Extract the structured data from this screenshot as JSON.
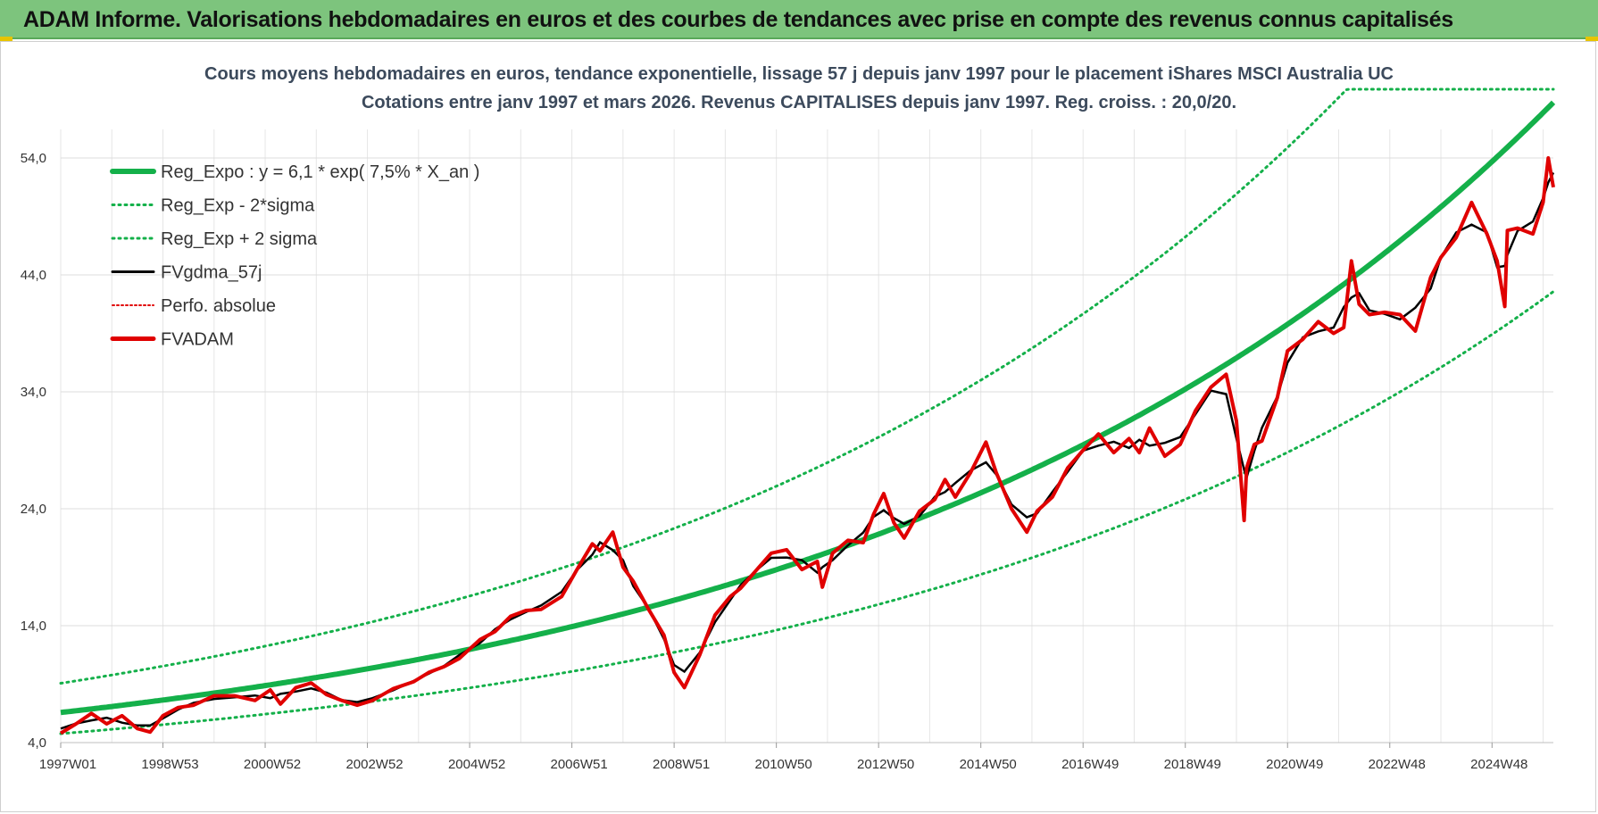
{
  "banner": {
    "title": "ADAM Informe. Valorisations hebdomadaires en euros et des courbes de tendances avec prise en compte des revenus connus capitalisés"
  },
  "chart_data": {
    "type": "line",
    "title_line1": "Cours moyens hebdomadaires en euros, tendance exponentielle, lissage 57 j depuis janv 1997 pour le placement iShares MSCI Australia UC",
    "title_line2": "Cotations entre janv 1997 et mars 2026. Revenus CAPITALISES depuis janv 1997. Reg. croiss. : 20,0/20.",
    "xlabel": "",
    "ylabel": "",
    "xlim": [
      1997.0,
      2026.2
    ],
    "ylim": [
      4,
      59
    ],
    "y_ticks": [
      4.0,
      14.0,
      24.0,
      34.0,
      44.0,
      54.0
    ],
    "y_tick_labels": [
      "4,0",
      "14,0",
      "24,0",
      "34,0",
      "44,0",
      "54,0"
    ],
    "x_ticks": [
      1997.0,
      1999.0,
      2001.0,
      2003.0,
      2005.0,
      2007.0,
      2009.0,
      2011.0,
      2013.0,
      2015.0,
      2017.0,
      2019.0,
      2021.0,
      2023.0,
      2025.0
    ],
    "x_tick_labels": [
      "1997W01",
      "1998W53",
      "2000W52",
      "2002W52",
      "2004W52",
      "2006W51",
      "2008W51",
      "2010W50",
      "2012W50",
      "2014W50",
      "2016W49",
      "2018W49",
      "2020W49",
      "2022W48",
      "2024W48"
    ],
    "grid": true,
    "legend_position": "top-left",
    "regression": {
      "a": 6.1,
      "rate": 0.075,
      "sigma_factor": 1.38
    },
    "series": [
      {
        "name": "Reg_Expo : y = 6,1 * exp( 7,5% *  X_an )",
        "style": "solid-thick",
        "color": "#14b04a"
      },
      {
        "name": "Reg_Exp - 2*sigma",
        "style": "dotted",
        "color": "#14b04a"
      },
      {
        "name": "Reg_Exp + 2 sigma",
        "style": "dotted",
        "color": "#14b04a"
      },
      {
        "name": "FVgdma_57j",
        "style": "solid",
        "color": "#000000"
      },
      {
        "name": "Perfo. absolue",
        "style": "dotted",
        "color": "#e00000"
      },
      {
        "name": "FVADAM",
        "style": "solid-thick",
        "color": "#e00000",
        "x": [
          1997.0,
          1997.3,
          1997.6,
          1997.9,
          1998.2,
          1998.5,
          1998.75,
          1999.0,
          1999.3,
          1999.6,
          2000.0,
          2000.4,
          2000.8,
          2001.1,
          2001.3,
          2001.6,
          2001.9,
          2002.2,
          2002.5,
          2002.8,
          2003.1,
          2003.5,
          2003.9,
          2004.2,
          2004.5,
          2004.8,
          2005.2,
          2005.5,
          2005.8,
          2006.1,
          2006.4,
          2006.8,
          2007.1,
          2007.4,
          2007.55,
          2007.8,
          2008.0,
          2008.2,
          2008.5,
          2008.8,
          2009.0,
          2009.2,
          2009.5,
          2009.8,
          2010.1,
          2010.3,
          2010.6,
          2010.9,
          2011.2,
          2011.5,
          2011.8,
          2011.9,
          2012.1,
          2012.4,
          2012.7,
          2012.9,
          2013.1,
          2013.3,
          2013.5,
          2013.8,
          2014.1,
          2014.3,
          2014.5,
          2014.8,
          2015.1,
          2015.3,
          2015.6,
          2015.9,
          2016.1,
          2016.4,
          2016.7,
          2017.0,
          2017.3,
          2017.6,
          2017.9,
          2018.1,
          2018.3,
          2018.6,
          2018.9,
          2019.2,
          2019.5,
          2019.8,
          2020.0,
          2020.15,
          2020.2,
          2020.35,
          2020.5,
          2020.8,
          2021.0,
          2021.3,
          2021.6,
          2021.9,
          2022.1,
          2022.25,
          2022.4,
          2022.6,
          2022.9,
          2023.2,
          2023.5,
          2023.8,
          2024.0,
          2024.3,
          2024.6,
          2024.9,
          2025.1,
          2025.25,
          2025.3,
          2025.5,
          2025.8,
          2026.0,
          2026.1,
          2026.2
        ],
        "values": [
          4.8,
          5.6,
          6.5,
          5.6,
          6.3,
          5.2,
          4.9,
          6.3,
          7.0,
          7.2,
          8.0,
          8.0,
          7.6,
          8.5,
          7.3,
          8.7,
          9.1,
          8.1,
          7.6,
          7.2,
          7.6,
          8.6,
          9.2,
          10.0,
          10.5,
          11.2,
          12.8,
          13.5,
          14.8,
          15.3,
          15.4,
          16.5,
          18.8,
          21.0,
          20.4,
          22.0,
          19.0,
          17.8,
          15.4,
          13.2,
          10.0,
          8.7,
          11.5,
          14.9,
          16.5,
          17.2,
          18.7,
          20.2,
          20.5,
          18.8,
          19.5,
          17.3,
          20.2,
          21.3,
          21.1,
          23.5,
          25.3,
          22.8,
          21.5,
          23.8,
          24.8,
          26.5,
          25.0,
          27.1,
          29.7,
          27.1,
          24.0,
          22.0,
          23.8,
          25.0,
          27.5,
          29.0,
          30.4,
          28.8,
          30.0,
          28.8,
          30.9,
          28.5,
          29.5,
          32.4,
          34.4,
          35.5,
          31.5,
          23.0,
          27.5,
          29.5,
          29.8,
          33.5,
          37.5,
          38.5,
          40.0,
          39.0,
          39.5,
          45.2,
          41.5,
          40.6,
          40.8,
          40.6,
          39.2,
          43.8,
          45.5,
          47.2,
          50.2,
          47.5,
          45.2,
          41.3,
          47.8,
          48.0,
          47.5,
          50.2,
          54.0,
          51.5
        ]
      }
    ]
  }
}
